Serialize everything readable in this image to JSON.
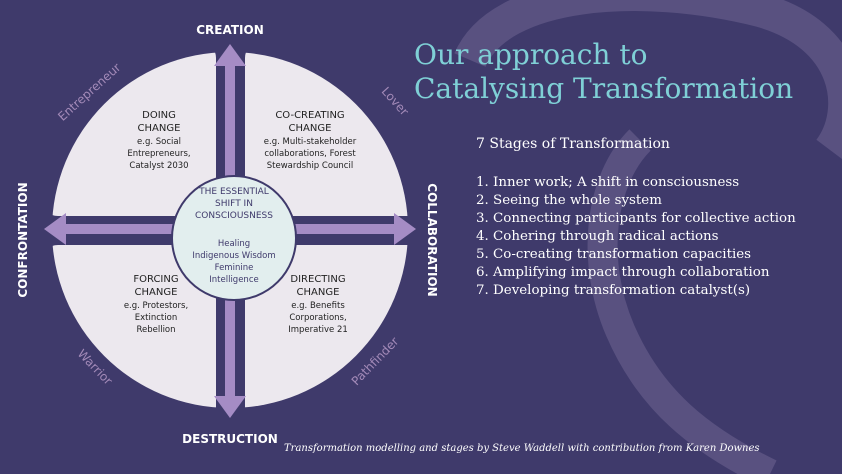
{
  "colors": {
    "background": "#3f3a6b",
    "quadrant_fill": "#ece8ee",
    "arrow": "#a58cc5",
    "title": "#7fd0d6",
    "role_label": "#a38ab8",
    "watermark": "#8a7fa8"
  },
  "diagram": {
    "axes": {
      "top": "CREATION",
      "bottom": "DESTRUCTION",
      "left": "CONFRONTATION",
      "right": "COLLABORATION"
    },
    "roles": {
      "top_left": "Entrepreneur",
      "top_right": "Lover",
      "bottom_left": "Warrior",
      "bottom_right": "Pathfinder"
    },
    "quadrants": {
      "top_left": {
        "heading": [
          "DOING",
          "CHANGE"
        ],
        "detail": [
          "e.g. Social",
          "Entrepreneurs,",
          "Catalyst 2030"
        ]
      },
      "top_right": {
        "heading": [
          "CO-CREATING",
          "CHANGE"
        ],
        "detail": [
          "e.g. Multi-stakeholder",
          "collaborations, Forest",
          "Stewardship Council"
        ]
      },
      "bottom_left": {
        "heading": [
          "FORCING",
          "CHANGE"
        ],
        "detail": [
          "e.g. Protestors,",
          "Extinction",
          "Rebellion"
        ]
      },
      "bottom_right": {
        "heading": [
          "DIRECTING",
          "CHANGE"
        ],
        "detail": [
          "e.g. Benefits",
          "Corporations,",
          "Imperative 21"
        ]
      }
    },
    "center": {
      "heading": [
        "THE ESSENTIAL",
        "SHIFT IN",
        "CONSCIOUSNESS"
      ],
      "items": [
        "Healing",
        "Indigenous Wisdom",
        "Feminine",
        "Intelligence"
      ]
    }
  },
  "title_lines": [
    "Our approach to",
    "Catalysing Transformation"
  ],
  "stages": {
    "heading": "7 Stages of Transformation",
    "items": [
      "1. Inner work; A shift in consciousness",
      "2. Seeing the whole system",
      "3. Connecting participants for collective action",
      "4. Cohering through radical actions",
      "5. Co-creating transformation capacities",
      "6. Amplifying impact through collaboration",
      "7. Developing transformation catalyst(s)"
    ]
  },
  "credit": "Transformation modelling and stages by Steve Waddell with contribution from Karen Downes"
}
